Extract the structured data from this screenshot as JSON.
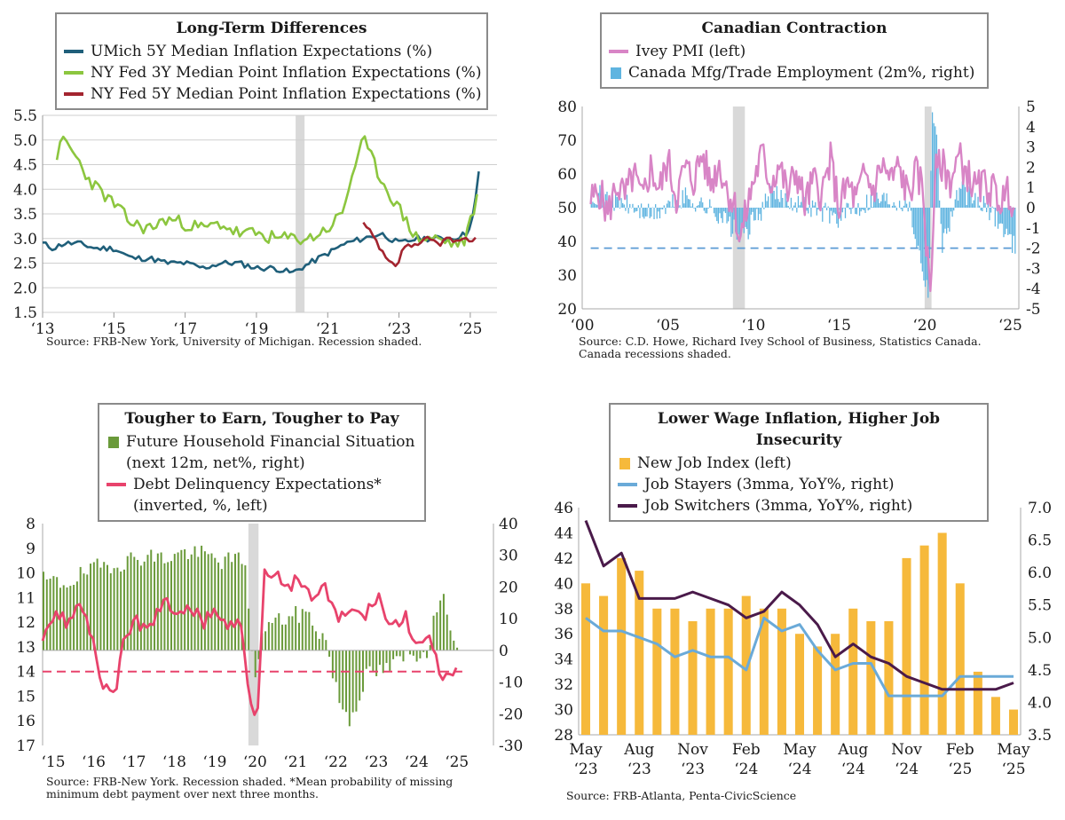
{
  "panels": [
    {
      "title": "Long-Term Differences",
      "source": "Source: FRB-New York, University of Michigan. Recession shaded.",
      "legend": [
        {
          "label": "UMich 5Y Median Inflation Expectations (%)",
          "color": "#1f5f7a",
          "kind": "line"
        },
        {
          "label": "NY Fed 3Y Median Point Inflation Expectations (%)",
          "color": "#8cc63f",
          "kind": "line"
        },
        {
          "label": "NY Fed 5Y Median Point Inflation Expectations (%)",
          "color": "#a3242f",
          "kind": "line"
        }
      ],
      "y_left_ticks": [
        "5.5",
        "5.0",
        "4.5",
        "4.0",
        "3.5",
        "3.0",
        "2.5",
        "2.0",
        "1.5"
      ],
      "x_ticks": [
        "‘13",
        "‘15",
        "‘17",
        "‘19",
        "‘21",
        "‘23",
        "‘25"
      ]
    },
    {
      "title": "Canadian Contraction",
      "source_lines": [
        "Source: C.D. Howe, Richard Ivey School of Business, Statistics Canada.",
        "Canada recessions shaded."
      ],
      "legend": [
        {
          "label": "Ivey PMI (left)",
          "color": "#d885c6",
          "kind": "line"
        },
        {
          "label": "Canada Mfg/Trade Employment (2m%, right)",
          "color": "#5fb4e0",
          "kind": "box"
        }
      ],
      "y_left_ticks": [
        "80",
        "70",
        "60",
        "50",
        "40",
        "30",
        "20"
      ],
      "y_right_ticks": [
        "5",
        "4",
        "3",
        "2",
        "1",
        "0",
        "-1",
        "-2",
        "-3",
        "-4",
        "-5"
      ],
      "x_ticks": [
        "‘00",
        "‘05",
        "‘10",
        "‘15",
        "‘20",
        "‘25"
      ]
    },
    {
      "title": "Tougher to Earn, Tougher to Pay",
      "source_lines": [
        "Source: FRB-New York. Recession shaded. *Mean probability of missing",
        "minimum debt payment over next three months."
      ],
      "legend": [
        {
          "label": "Future Household Financial Situation",
          "label2": "(next 12m, net%, right)",
          "color": "#6a9a3a",
          "kind": "box"
        },
        {
          "label": "Debt Delinquency Expectations*",
          "label2": "(inverted, %, left)",
          "color": "#e8436c",
          "kind": "line"
        }
      ],
      "y_left_ticks": [
        "8",
        "9",
        "10",
        "11",
        "12",
        "13",
        "14",
        "15",
        "16",
        "17"
      ],
      "y_right_ticks": [
        "40",
        "30",
        "20",
        "10",
        "0",
        "-10",
        "-20",
        "-30"
      ],
      "x_ticks": [
        "‘15",
        "‘16",
        "‘17",
        "‘18",
        "‘19",
        "‘20",
        "‘21",
        "‘22",
        "‘23",
        "‘24",
        "‘25"
      ]
    },
    {
      "title": "Lower Wage Inflation, Higher Job Insecurity",
      "source": "Source: FRB-Atlanta, Penta-CivicScience",
      "legend": [
        {
          "label": "New Job Index (left)",
          "color": "#f6b93b",
          "kind": "box"
        },
        {
          "label": "Job Stayers (3mma, YoY%, right)",
          "color": "#6aaad8",
          "kind": "line"
        },
        {
          "label": "Job Switchers (3mma, YoY%, right)",
          "color": "#4a1a4a",
          "kind": "line"
        }
      ],
      "y_left_ticks": [
        "46",
        "44",
        "42",
        "40",
        "38",
        "36",
        "34",
        "32",
        "30",
        "28"
      ],
      "y_right_ticks": [
        "7.0",
        "6.5",
        "6.0",
        "5.5",
        "5.0",
        "4.5",
        "4.0",
        "3.5"
      ],
      "x_ticks": [
        [
          "May",
          "‘23"
        ],
        [
          "Aug",
          "‘23"
        ],
        [
          "Nov",
          "‘23"
        ],
        [
          "Feb",
          "‘24"
        ],
        [
          "May",
          "‘24"
        ],
        [
          "Aug",
          "‘24"
        ],
        [
          "Nov",
          "‘24"
        ],
        [
          "Feb",
          "‘25"
        ],
        [
          "May",
          "‘25"
        ]
      ]
    }
  ],
  "chart_data": [
    {
      "type": "line",
      "title": "Long-Term Differences",
      "ylim": [
        1.5,
        5.5
      ],
      "x_range": [
        2013.0,
        2025.75
      ],
      "recession": [
        [
          2020.1,
          2020.35
        ]
      ],
      "grid": true,
      "series": [
        {
          "name": "UMich 5Y Median Inflation Expectations (%)",
          "color": "#1f5f7a",
          "x": [
            2013.0,
            2013.3,
            2013.6,
            2014.0,
            2014.5,
            2015.0,
            2015.5,
            2016.0,
            2016.5,
            2017.0,
            2017.5,
            2018.0,
            2018.5,
            2019.0,
            2019.5,
            2020.0,
            2020.5,
            2021.0,
            2021.5,
            2022.0,
            2022.5,
            2023.0,
            2023.5,
            2024.0,
            2024.5,
            2024.9,
            2025.1,
            2025.25
          ],
          "y": [
            2.9,
            2.8,
            2.9,
            2.9,
            2.8,
            2.8,
            2.6,
            2.6,
            2.5,
            2.5,
            2.4,
            2.5,
            2.5,
            2.4,
            2.4,
            2.3,
            2.5,
            2.7,
            2.9,
            3.0,
            3.1,
            2.9,
            3.0,
            3.0,
            3.0,
            3.1,
            3.5,
            4.4
          ]
        },
        {
          "name": "NY Fed 3Y Median Point Inflation Expectations (%)",
          "color": "#8cc63f",
          "x": [
            2013.4,
            2013.6,
            2013.9,
            2014.3,
            2014.7,
            2015.0,
            2015.5,
            2016.0,
            2016.5,
            2017.0,
            2017.5,
            2018.0,
            2018.5,
            2019.0,
            2019.5,
            2020.0,
            2020.5,
            2021.0,
            2021.4,
            2021.8,
            2022.0,
            2022.5,
            2023.0,
            2023.5,
            2024.0,
            2024.5,
            2024.8,
            2025.0,
            2025.2
          ],
          "y": [
            4.7,
            5.0,
            4.7,
            4.2,
            3.9,
            3.7,
            3.3,
            3.2,
            3.4,
            3.3,
            3.2,
            3.3,
            3.1,
            3.1,
            3.0,
            3.0,
            3.0,
            3.2,
            3.5,
            4.6,
            5.0,
            4.2,
            3.6,
            3.0,
            3.0,
            2.9,
            2.9,
            3.3,
            3.9
          ]
        },
        {
          "name": "NY Fed 5Y Median Point Inflation Expectations (%)",
          "color": "#a3242f",
          "x": [
            2022.0,
            2022.3,
            2022.6,
            2022.9,
            2023.2,
            2023.5,
            2023.8,
            2024.1,
            2024.4,
            2024.7,
            2025.0,
            2025.2
          ],
          "y": [
            3.3,
            3.0,
            2.6,
            2.4,
            2.9,
            2.8,
            3.0,
            2.9,
            3.0,
            2.9,
            3.0,
            3.0
          ]
        }
      ]
    },
    {
      "type": "line",
      "title": "Canadian Contraction",
      "ylim": [
        20,
        80
      ],
      "y2lim": [
        -5,
        5
      ],
      "x_range": [
        2000.0,
        2025.5
      ],
      "recession": [
        [
          2008.8,
          2009.5
        ],
        [
          2020.0,
          2020.4
        ]
      ],
      "series": [
        {
          "name": "Ivey PMI (left)",
          "color": "#d885c6",
          "axis": "left",
          "x": [
            2000.5,
            2001.0,
            2001.5,
            2002.0,
            2002.5,
            2003.0,
            2003.5,
            2004.0,
            2004.5,
            2005.0,
            2005.5,
            2006.0,
            2006.5,
            2007.0,
            2007.5,
            2008.0,
            2008.5,
            2008.9,
            2009.2,
            2009.5,
            2010.0,
            2010.5,
            2011.0,
            2011.5,
            2012.0,
            2012.5,
            2013.0,
            2013.5,
            2014.0,
            2014.5,
            2015.0,
            2015.5,
            2016.0,
            2016.5,
            2017.0,
            2017.5,
            2018.0,
            2018.5,
            2019.0,
            2019.5,
            2019.9,
            2020.15,
            2020.35,
            2020.6,
            2021.0,
            2021.5,
            2022.0,
            2022.5,
            2023.0,
            2023.5,
            2024.0,
            2024.5,
            2025.0,
            2025.3
          ],
          "y": [
            52,
            55,
            48,
            57,
            53,
            60,
            52,
            62,
            55,
            64,
            53,
            62,
            58,
            66,
            57,
            63,
            55,
            51,
            40,
            47,
            58,
            66,
            57,
            63,
            54,
            61,
            51,
            58,
            54,
            64,
            50,
            57,
            52,
            60,
            55,
            63,
            58,
            62,
            54,
            60,
            56,
            35,
            25,
            60,
            63,
            58,
            65,
            60,
            55,
            57,
            55,
            52,
            55,
            47
          ]
        },
        {
          "name": "Canada Mfg/Trade Employment (2m%, right)",
          "color": "#5fb4e0",
          "axis": "right",
          "kind": "bar",
          "x": [
            2000.5,
            2002,
            2004,
            2006,
            2008,
            2009.0,
            2009.3,
            2011,
            2013,
            2015,
            2017,
            2019,
            2020.2,
            2020.4,
            2020.7,
            2021.0,
            2022,
            2024,
            2025.3
          ],
          "y": [
            0.8,
            0.3,
            -0.4,
            0.5,
            -0.3,
            -1.3,
            -1.5,
            0.6,
            0.2,
            -0.5,
            0.5,
            0.3,
            -4.3,
            5.0,
            3.0,
            -1.8,
            0.9,
            -0.3,
            -2.0
          ]
        },
        {
          "name": "",
          "color": "#5b9bd5",
          "axis": "right",
          "kind": "dashed",
          "x": [
            2000.5,
            2025.3
          ],
          "y": [
            -2.0,
            -2.0
          ]
        }
      ]
    },
    {
      "type": "bar",
      "title": "Tougher to Earn, Tougher to Pay",
      "ylim_left_inverted": [
        8,
        17
      ],
      "ylim_right": [
        -30,
        40
      ],
      "x_range": [
        2015.0,
        2025.6
      ],
      "recession": [
        [
          2020.1,
          2020.35
        ]
      ],
      "series": [
        {
          "name": "Future Household Financial Situation (next 12m, net%, right)",
          "color": "#6a9a3a",
          "axis": "right",
          "kind": "bar",
          "x": [
            2015.0,
            2015.5,
            2016.0,
            2016.5,
            2017.0,
            2017.5,
            2018.0,
            2018.5,
            2019.0,
            2019.5,
            2020.0,
            2020.2,
            2020.5,
            2021.0,
            2021.5,
            2022.0,
            2022.3,
            2022.6,
            2023.0,
            2023.5,
            2024.0,
            2024.5,
            2024.8,
            2025.0,
            2025.3
          ],
          "y": [
            22,
            21,
            24,
            27,
            28,
            30,
            29,
            31,
            30,
            28,
            29,
            -9,
            8,
            10,
            12,
            3,
            -15,
            -22,
            -8,
            -6,
            -2,
            0,
            16,
            14,
            -4
          ]
        },
        {
          "name": "Debt Delinquency Expectations* (inverted, %, left)",
          "color": "#e8436c",
          "axis": "left",
          "kind": "line",
          "x": [
            2015.0,
            2015.3,
            2015.6,
            2015.9,
            2016.2,
            2016.5,
            2016.8,
            2017.0,
            2017.3,
            2017.6,
            2018.0,
            2018.3,
            2018.6,
            2019.0,
            2019.3,
            2019.6,
            2019.9,
            2020.1,
            2020.3,
            2020.5,
            2020.8,
            2021.0,
            2021.3,
            2021.6,
            2022.0,
            2022.3,
            2022.6,
            2023.0,
            2023.3,
            2023.6,
            2024.0,
            2024.3,
            2024.6,
            2024.9,
            2025.1,
            2025.3
          ],
          "y": [
            12.5,
            11.5,
            12.0,
            11.3,
            12.5,
            14.5,
            14.8,
            13.0,
            11.8,
            12.5,
            11.0,
            12.0,
            11.2,
            12.0,
            11.5,
            12.2,
            12.0,
            14.5,
            16.3,
            9.8,
            10.0,
            10.8,
            10.3,
            11.0,
            10.6,
            12.0,
            11.5,
            11.8,
            10.8,
            12.2,
            11.8,
            13.0,
            12.8,
            14.2,
            14.4,
            13.7
          ]
        },
        {
          "name": "",
          "color": "#e8436c",
          "axis": "left",
          "kind": "dashed",
          "x": [
            2015.0,
            2025.4
          ],
          "y": [
            14.0,
            14.0
          ]
        }
      ]
    },
    {
      "type": "bar",
      "title": "Lower Wage Inflation, Higher Job Insecurity",
      "ylim_left": [
        28,
        46
      ],
      "ylim_right": [
        3.5,
        7.0
      ],
      "categories": [
        "May ‘23",
        "Jun ‘23",
        "Jul ‘23",
        "Aug ‘23",
        "Sep ‘23",
        "Oct ‘23",
        "Nov ‘23",
        "Dec ‘23",
        "Jan ‘24",
        "Feb ‘24",
        "Mar ‘24",
        "Apr ‘24",
        "May ‘24",
        "Jun ‘24",
        "Jul ‘24",
        "Aug ‘24",
        "Sep ‘24",
        "Oct ‘24",
        "Nov ‘24",
        "Dec ‘24",
        "Jan ‘25",
        "Feb ‘25",
        "Mar ‘25",
        "Apr ‘25",
        "May ‘25"
      ],
      "series": [
        {
          "name": "New Job Index (left)",
          "color": "#f6b93b",
          "axis": "left",
          "kind": "bar",
          "values": [
            40,
            39,
            42,
            41,
            38,
            38,
            37,
            38,
            38,
            39,
            38,
            38,
            36,
            35,
            36,
            38,
            37,
            37,
            42,
            43,
            44,
            40,
            33,
            31,
            30
          ]
        },
        {
          "name": "Job Stayers (3mma, YoY%, right)",
          "color": "#6aaad8",
          "axis": "right",
          "kind": "line",
          "values": [
            5.3,
            5.1,
            5.1,
            5.0,
            4.9,
            4.7,
            4.8,
            4.7,
            4.7,
            4.5,
            5.3,
            5.1,
            5.2,
            4.8,
            4.5,
            4.6,
            4.6,
            4.1,
            4.1,
            4.1,
            4.1,
            4.4,
            4.4,
            4.4,
            4.4
          ]
        },
        {
          "name": "Job Switchers (3mma, YoY%, right)",
          "color": "#4a1a4a",
          "axis": "right",
          "kind": "line",
          "values": [
            6.8,
            6.1,
            6.3,
            5.6,
            5.6,
            5.6,
            5.7,
            5.6,
            5.5,
            5.3,
            5.4,
            5.7,
            5.5,
            5.2,
            4.7,
            4.9,
            4.7,
            4.6,
            4.4,
            4.3,
            4.2,
            4.2,
            4.2,
            4.2,
            4.3
          ]
        }
      ]
    }
  ]
}
